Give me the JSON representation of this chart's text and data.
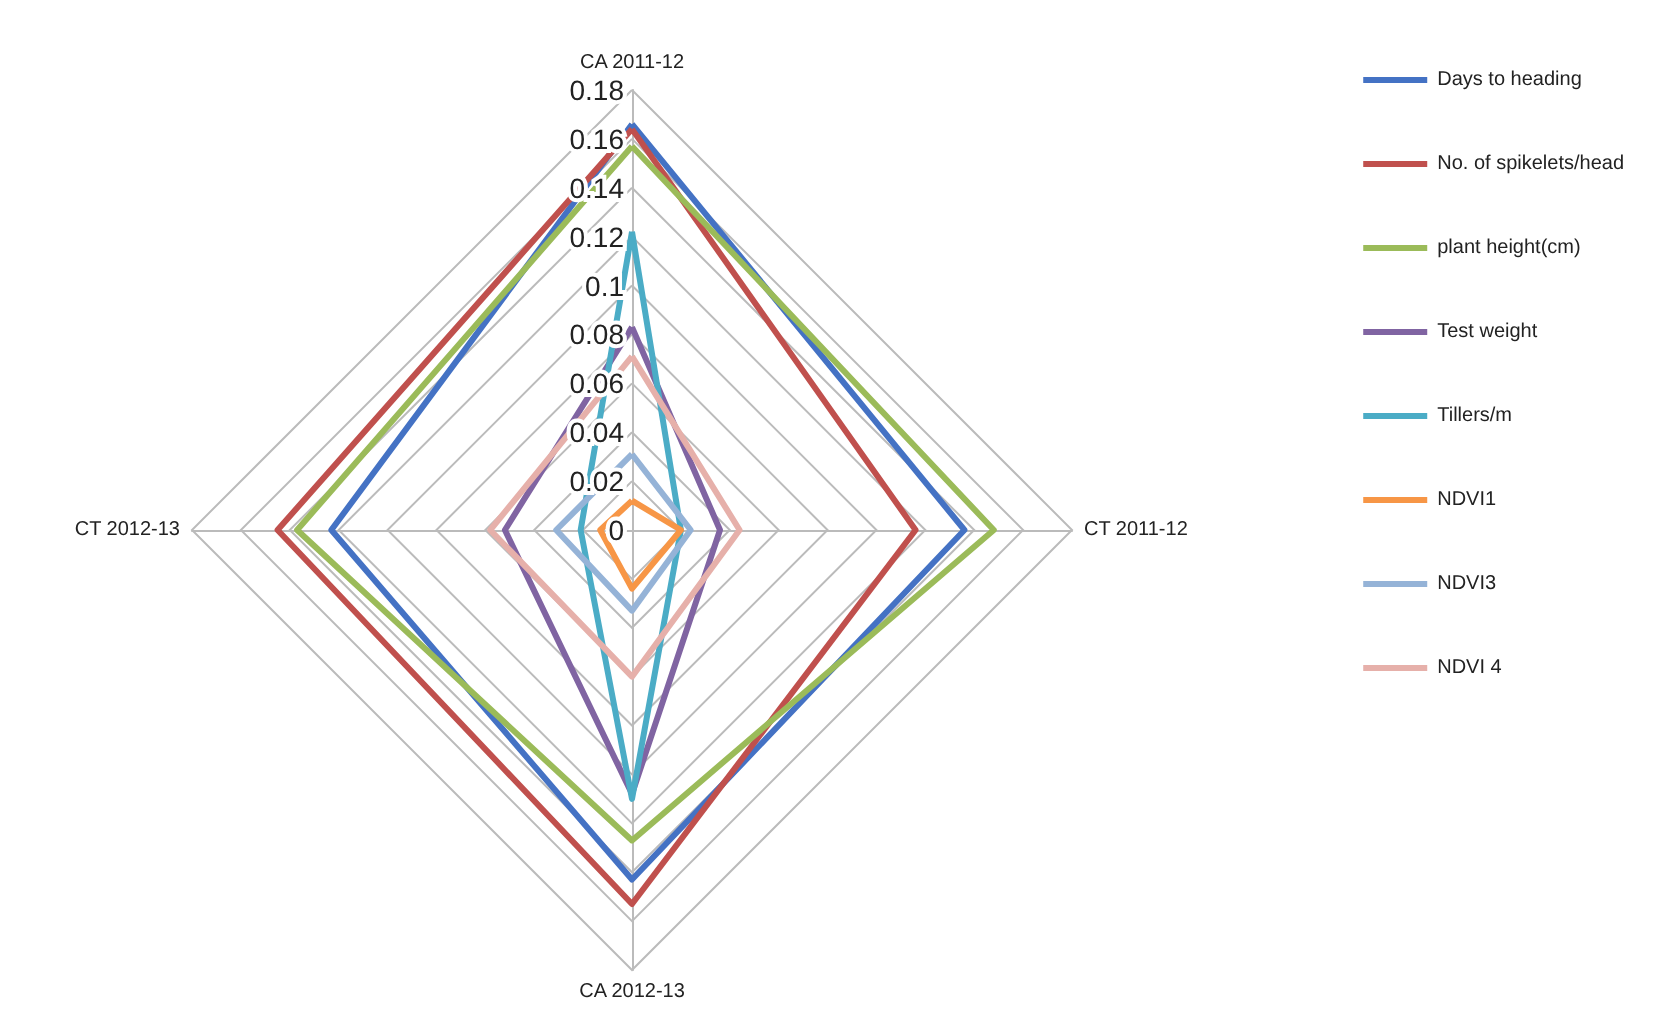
{
  "chart_data": {
    "type": "radar",
    "categories": [
      "CA 2011-12",
      "CT 2011-12",
      "CA 2012-13",
      "CT 2012-13"
    ],
    "ylim": [
      0,
      0.18
    ],
    "yticks": [
      0,
      0.02,
      0.04,
      0.06,
      0.08,
      0.1,
      0.12,
      0.14,
      0.16,
      0.18
    ],
    "grid": true,
    "legend": "right",
    "marker": "none",
    "series": [
      {
        "name": "Days to heading",
        "color": "#4472c4",
        "values": [
          0.166,
          0.136,
          0.143,
          0.123
        ]
      },
      {
        "name": "No. of spikelets/head",
        "color": "#c0504d",
        "values": [
          0.164,
          0.116,
          0.153,
          0.145
        ]
      },
      {
        "name": "plant height(cm)",
        "color": "#9bbb59",
        "values": [
          0.157,
          0.148,
          0.127,
          0.137
        ]
      },
      {
        "name": "Test weight",
        "color": "#8064a2",
        "values": [
          0.083,
          0.036,
          0.108,
          0.052
        ]
      },
      {
        "name": "Tillers/m",
        "color": "#4bacc6",
        "values": [
          0.122,
          0.02,
          0.11,
          0.021
        ]
      },
      {
        "name": "NDVI1",
        "color": "#f79646",
        "values": [
          0.012,
          0.02,
          0.024,
          0.013
        ]
      },
      {
        "name": "NDVI3",
        "color": "#95b3d7",
        "values": [
          0.031,
          0.024,
          0.033,
          0.031
        ]
      },
      {
        "name": "NDVI 4",
        "color": "#e6b0aa",
        "values": [
          0.071,
          0.044,
          0.06,
          0.058
        ]
      }
    ]
  }
}
